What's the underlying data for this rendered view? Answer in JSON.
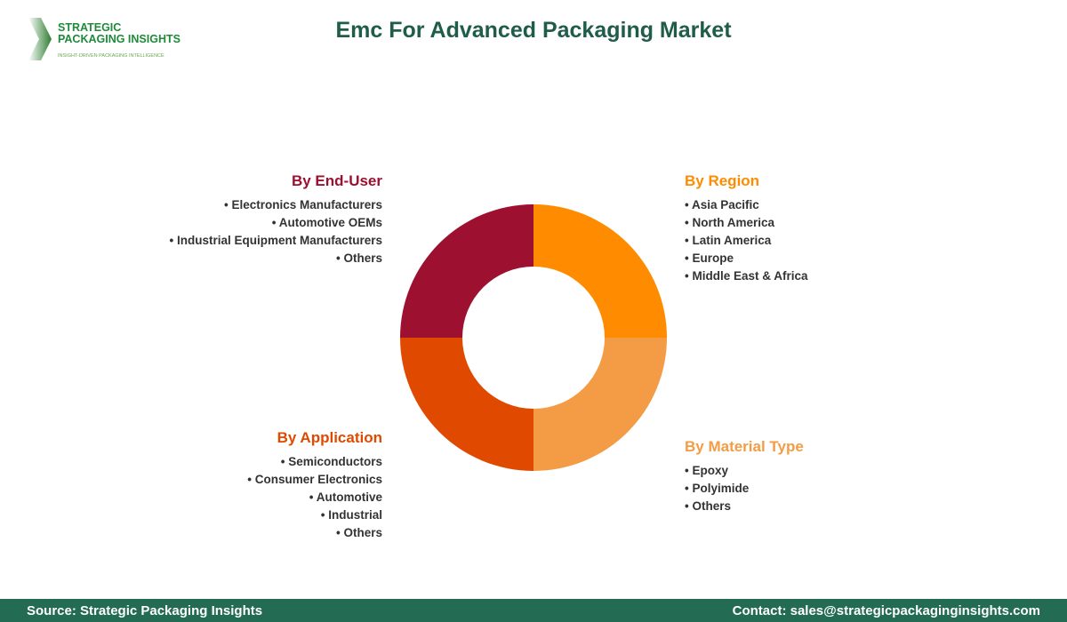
{
  "logo": {
    "line1": "STRATEGIC",
    "line2": "PACKAGING INSIGHTS",
    "tagline": "INSIGHT-DRIVEN PACKAGING INTELLIGENCE"
  },
  "title": "Emc For Advanced Packaging Market",
  "segments": {
    "end_user": {
      "title": "By End-User",
      "color": "#9e1030",
      "items": [
        "Electronics Manufacturers",
        "Automotive OEMs",
        "Industrial Equipment Manufacturers",
        "Others"
      ]
    },
    "region": {
      "title": "By Region",
      "color": "#ff8c00",
      "items": [
        "Asia Pacific",
        "North America",
        "Latin America",
        "Europe",
        "Middle East & Africa"
      ]
    },
    "application": {
      "title": "By Application",
      "color": "#e04a00",
      "items": [
        "Semiconductors",
        "Consumer Electronics",
        "Automotive",
        "Industrial",
        "Others"
      ]
    },
    "material": {
      "title": "By Material Type",
      "color": "#f39c45",
      "items": [
        "Epoxy",
        "Polyimide",
        "Others"
      ]
    }
  },
  "footer": {
    "source": "Source: Strategic Packaging Insights",
    "contact": "Contact: sales@strategicpackaginginsights.com"
  }
}
